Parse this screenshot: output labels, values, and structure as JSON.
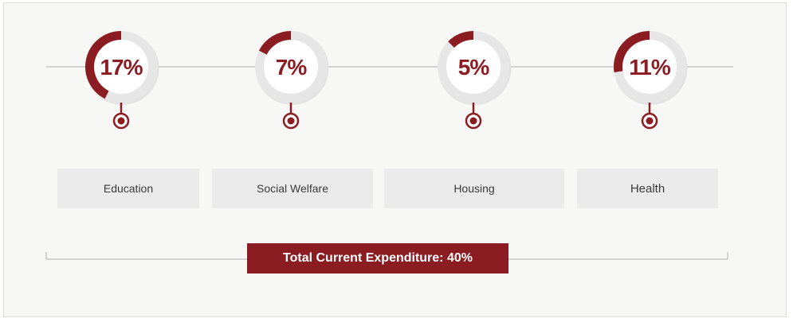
{
  "chart_data": {
    "type": "donut",
    "categories": [
      "Education",
      "Social Welfare",
      "Housing",
      "Health"
    ],
    "values": [
      17,
      7,
      5,
      11
    ],
    "value_labels": [
      "17%",
      "7%",
      "5%",
      "11%"
    ],
    "unit": "%",
    "total_label": "Total Current Expenditure: 40%"
  },
  "colors": {
    "accent": "#8b1c22",
    "track": "#e6e6e6",
    "line": "#bdbdbd",
    "box": "#ebebeb"
  }
}
